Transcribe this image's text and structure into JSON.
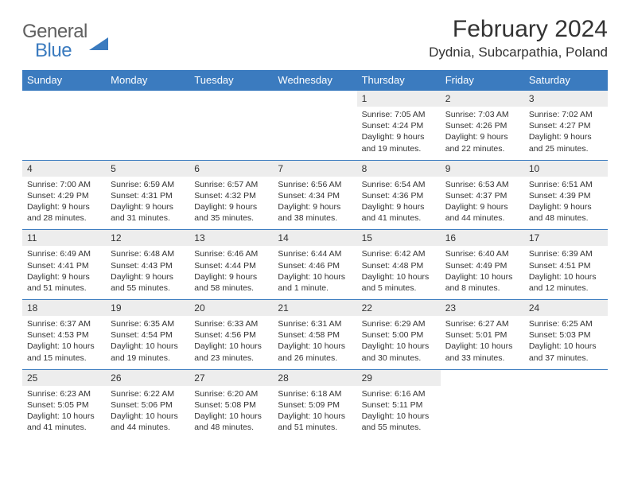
{
  "logo": {
    "word1": "General",
    "word2": "Blue"
  },
  "title": "February 2024",
  "location": "Dydnia, Subcarpathia, Poland",
  "colors": {
    "header_bg": "#3b7bbf",
    "header_text": "#ffffff",
    "daynum_bg": "#ededed",
    "logo_grey": "#606060",
    "logo_blue": "#3b7bbf",
    "body_text": "#333333"
  },
  "days_of_week": [
    "Sunday",
    "Monday",
    "Tuesday",
    "Wednesday",
    "Thursday",
    "Friday",
    "Saturday"
  ],
  "weeks": [
    [
      null,
      null,
      null,
      null,
      {
        "n": "1",
        "sr": "7:05 AM",
        "ss": "4:24 PM",
        "dl": "9 hours and 19 minutes."
      },
      {
        "n": "2",
        "sr": "7:03 AM",
        "ss": "4:26 PM",
        "dl": "9 hours and 22 minutes."
      },
      {
        "n": "3",
        "sr": "7:02 AM",
        "ss": "4:27 PM",
        "dl": "9 hours and 25 minutes."
      }
    ],
    [
      {
        "n": "4",
        "sr": "7:00 AM",
        "ss": "4:29 PM",
        "dl": "9 hours and 28 minutes."
      },
      {
        "n": "5",
        "sr": "6:59 AM",
        "ss": "4:31 PM",
        "dl": "9 hours and 31 minutes."
      },
      {
        "n": "6",
        "sr": "6:57 AM",
        "ss": "4:32 PM",
        "dl": "9 hours and 35 minutes."
      },
      {
        "n": "7",
        "sr": "6:56 AM",
        "ss": "4:34 PM",
        "dl": "9 hours and 38 minutes."
      },
      {
        "n": "8",
        "sr": "6:54 AM",
        "ss": "4:36 PM",
        "dl": "9 hours and 41 minutes."
      },
      {
        "n": "9",
        "sr": "6:53 AM",
        "ss": "4:37 PM",
        "dl": "9 hours and 44 minutes."
      },
      {
        "n": "10",
        "sr": "6:51 AM",
        "ss": "4:39 PM",
        "dl": "9 hours and 48 minutes."
      }
    ],
    [
      {
        "n": "11",
        "sr": "6:49 AM",
        "ss": "4:41 PM",
        "dl": "9 hours and 51 minutes."
      },
      {
        "n": "12",
        "sr": "6:48 AM",
        "ss": "4:43 PM",
        "dl": "9 hours and 55 minutes."
      },
      {
        "n": "13",
        "sr": "6:46 AM",
        "ss": "4:44 PM",
        "dl": "9 hours and 58 minutes."
      },
      {
        "n": "14",
        "sr": "6:44 AM",
        "ss": "4:46 PM",
        "dl": "10 hours and 1 minute."
      },
      {
        "n": "15",
        "sr": "6:42 AM",
        "ss": "4:48 PM",
        "dl": "10 hours and 5 minutes."
      },
      {
        "n": "16",
        "sr": "6:40 AM",
        "ss": "4:49 PM",
        "dl": "10 hours and 8 minutes."
      },
      {
        "n": "17",
        "sr": "6:39 AM",
        "ss": "4:51 PM",
        "dl": "10 hours and 12 minutes."
      }
    ],
    [
      {
        "n": "18",
        "sr": "6:37 AM",
        "ss": "4:53 PM",
        "dl": "10 hours and 15 minutes."
      },
      {
        "n": "19",
        "sr": "6:35 AM",
        "ss": "4:54 PM",
        "dl": "10 hours and 19 minutes."
      },
      {
        "n": "20",
        "sr": "6:33 AM",
        "ss": "4:56 PM",
        "dl": "10 hours and 23 minutes."
      },
      {
        "n": "21",
        "sr": "6:31 AM",
        "ss": "4:58 PM",
        "dl": "10 hours and 26 minutes."
      },
      {
        "n": "22",
        "sr": "6:29 AM",
        "ss": "5:00 PM",
        "dl": "10 hours and 30 minutes."
      },
      {
        "n": "23",
        "sr": "6:27 AM",
        "ss": "5:01 PM",
        "dl": "10 hours and 33 minutes."
      },
      {
        "n": "24",
        "sr": "6:25 AM",
        "ss": "5:03 PM",
        "dl": "10 hours and 37 minutes."
      }
    ],
    [
      {
        "n": "25",
        "sr": "6:23 AM",
        "ss": "5:05 PM",
        "dl": "10 hours and 41 minutes."
      },
      {
        "n": "26",
        "sr": "6:22 AM",
        "ss": "5:06 PM",
        "dl": "10 hours and 44 minutes."
      },
      {
        "n": "27",
        "sr": "6:20 AM",
        "ss": "5:08 PM",
        "dl": "10 hours and 48 minutes."
      },
      {
        "n": "28",
        "sr": "6:18 AM",
        "ss": "5:09 PM",
        "dl": "10 hours and 51 minutes."
      },
      {
        "n": "29",
        "sr": "6:16 AM",
        "ss": "5:11 PM",
        "dl": "10 hours and 55 minutes."
      },
      null,
      null
    ]
  ],
  "labels": {
    "sunrise": "Sunrise:",
    "sunset": "Sunset:",
    "daylight": "Daylight:"
  }
}
